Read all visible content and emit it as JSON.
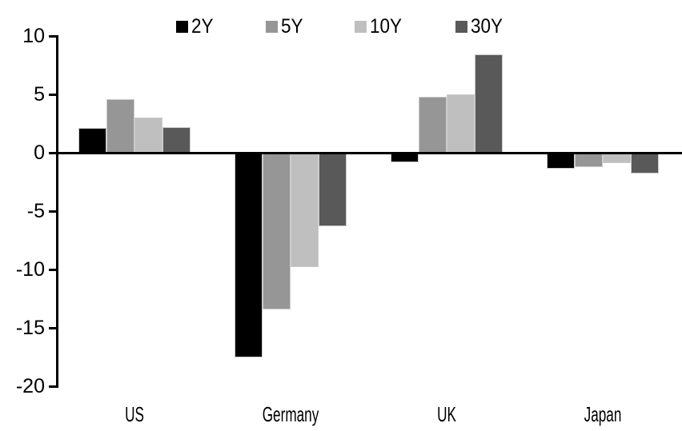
{
  "chart_data": {
    "type": "bar",
    "title": "",
    "categories": [
      "US",
      "Germany",
      "UK",
      "Japan"
    ],
    "series": [
      {
        "name": "2Y",
        "color": "#000000",
        "values": [
          2.1,
          -17.5,
          -0.8,
          -1.4
        ]
      },
      {
        "name": "5Y",
        "color": "#969696",
        "values": [
          4.6,
          -13.4,
          4.8,
          -1.2
        ]
      },
      {
        "name": "10Y",
        "color": "#bfbfbf",
        "values": [
          3.0,
          -9.8,
          5.0,
          -0.9
        ]
      },
      {
        "name": "30Y",
        "color": "#595959",
        "values": [
          2.2,
          -6.3,
          8.4,
          -1.8
        ]
      }
    ],
    "ylim": [
      -20,
      10
    ],
    "yticks": [
      10,
      5,
      0,
      -5,
      -10,
      -15,
      -20
    ],
    "xlabel": "",
    "ylabel": "",
    "grid": false,
    "legend_position": "top",
    "axis_color": "#000000",
    "background_color": "#ffffff"
  }
}
